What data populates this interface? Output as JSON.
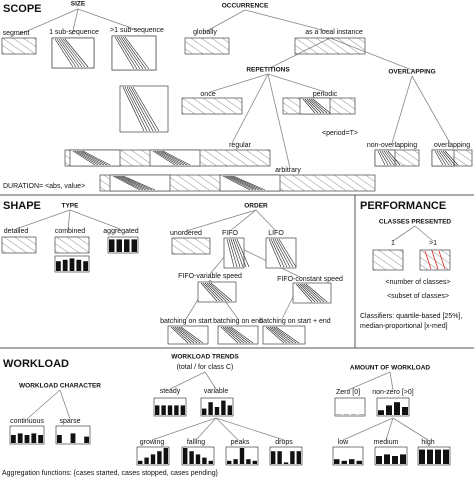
{
  "scope": {
    "title": "SCOPE",
    "labels": [
      "SIZE",
      "segment",
      "1 sub-sequence",
      ">1 sub-sequence",
      "OCCURRENCE",
      "globally",
      "as a local instance",
      "REPETITIONS",
      "OVERLAPPING",
      "once",
      "periodic",
      "<period=T>",
      "regular",
      "non-overlapping",
      "overlapping",
      "arbitrary",
      "DURATION= <abs, value>"
    ]
  },
  "shape": {
    "title": "SHAPE",
    "labels": [
      "TYPE",
      "detailed",
      "combined",
      "aggregated",
      "ORDER",
      "unordered",
      "FIFO",
      "LIFO",
      "FIFO-variable speed",
      "FIFO-constant speed",
      "batching on start",
      "batching on end",
      "batching on start + end"
    ]
  },
  "performance": {
    "title": "PERFORMANCE",
    "labels": [
      "CLASSES PRESENTED",
      "1",
      ">1",
      "<number of classes>",
      "<subset of classes>",
      "Classifiers: quartile-based [25%],",
      "median-proportional [x-med]"
    ]
  },
  "workload": {
    "title": "WORKLOAD",
    "labels": [
      "WORKLOAD TRENDS",
      "(total / for class C)",
      "WORKLOAD CHARACTER",
      "AMOUNT OF WORKLOAD",
      "steady",
      "variable",
      "Zero [0]",
      "non-zero [>0]",
      "continuous",
      "sparse",
      "low",
      "medium",
      "high",
      "growing",
      "falling",
      "peaks",
      "drops"
    ]
  },
  "footer": "Aggregation functions: {cases started, cases stopped, cases pending}"
}
